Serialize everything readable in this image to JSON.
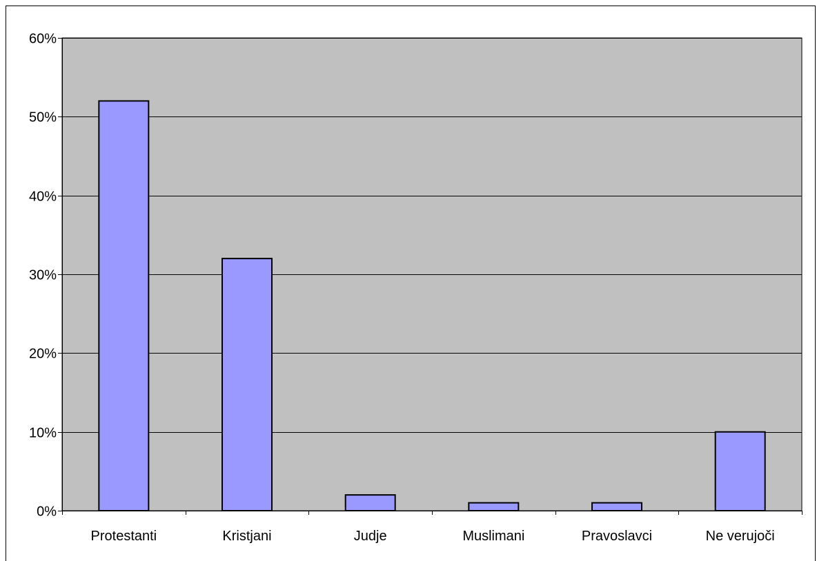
{
  "chart_data": {
    "type": "bar",
    "title": "",
    "xlabel": "",
    "ylabel": "",
    "categories": [
      "Protestanti",
      "Kristjani",
      "Judje",
      "Muslimani",
      "Pravoslavci",
      "Ne verujoči"
    ],
    "values": [
      52,
      32,
      2,
      1,
      1,
      10
    ],
    "value_format": "percent",
    "ylim": [
      0,
      60
    ],
    "y_ticks": [
      0,
      10,
      20,
      30,
      40,
      50,
      60
    ],
    "y_tick_labels": [
      "0%",
      "10%",
      "20%",
      "30%",
      "40%",
      "50%",
      "60%"
    ],
    "grid": true,
    "legend": "none",
    "colors": {
      "plot_background": "#c0c0c0",
      "bar_fill": "#9999ff",
      "bar_stroke": "#000000",
      "gridline": "#000000",
      "axis": "#000000"
    }
  }
}
